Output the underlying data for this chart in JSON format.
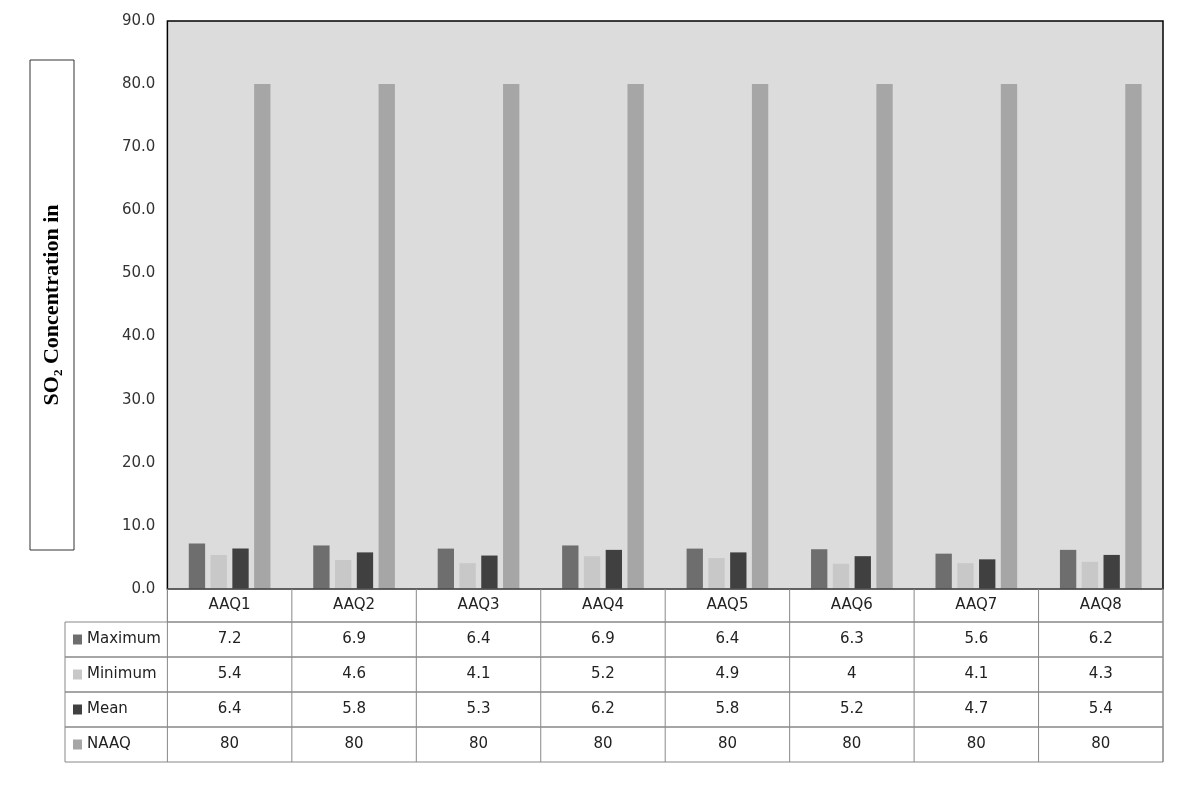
{
  "chart_data": {
    "type": "bar",
    "ylabel": "SO₂ Concentration in",
    "categories": [
      "AAQ1",
      "AAQ2",
      "AAQ3",
      "AAQ4",
      "AAQ5",
      "AAQ6",
      "AAQ7",
      "AAQ8"
    ],
    "series": [
      {
        "name": "Maximum",
        "color": "#6e6e6e",
        "values": [
          7.2,
          6.9,
          6.4,
          6.9,
          6.4,
          6.3,
          5.6,
          6.2
        ]
      },
      {
        "name": "Minimum",
        "color": "#c8c8c8",
        "values": [
          5.4,
          4.6,
          4.1,
          5.2,
          4.9,
          4,
          4.1,
          4.3
        ]
      },
      {
        "name": "Mean",
        "color": "#404040",
        "values": [
          6.4,
          5.8,
          5.3,
          6.2,
          5.8,
          5.2,
          4.7,
          5.4
        ]
      },
      {
        "name": "NAAQ",
        "color": "#a6a6a6",
        "values": [
          80,
          80,
          80,
          80,
          80,
          80,
          80,
          80
        ]
      }
    ],
    "ylim": [
      0,
      90
    ],
    "yticks": [
      {
        "value": 0,
        "label": "0.0"
      },
      {
        "value": 10,
        "label": "10.0"
      },
      {
        "value": 20,
        "label": "20.0"
      },
      {
        "value": 30,
        "label": "30.0"
      },
      {
        "value": 40,
        "label": "40.0"
      },
      {
        "value": 50,
        "label": "50.0"
      },
      {
        "value": 60,
        "label": "60.0"
      },
      {
        "value": 70,
        "label": "70.0"
      },
      {
        "value": 80,
        "label": "80.0"
      },
      {
        "value": 90,
        "label": "90.0"
      }
    ],
    "grid": false,
    "legend": "bottom",
    "data_labels": true
  }
}
